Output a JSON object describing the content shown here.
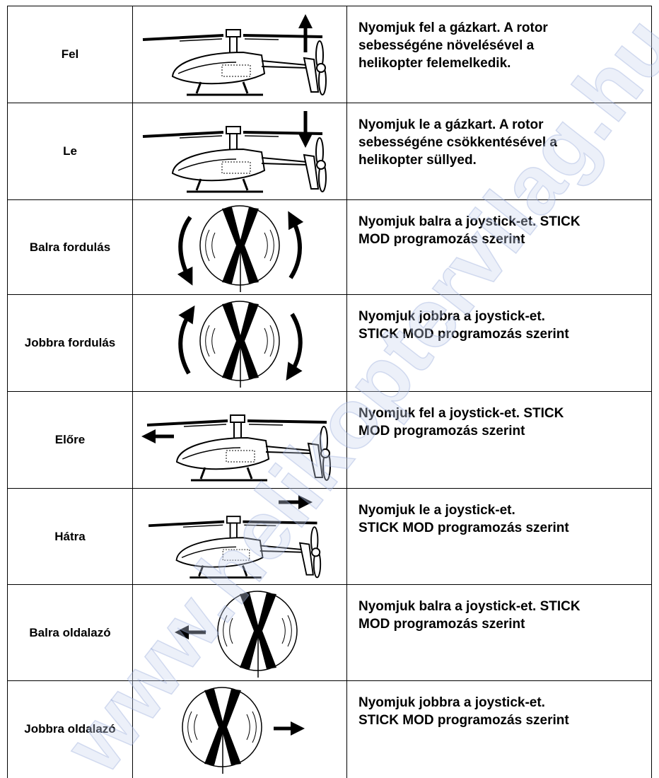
{
  "table": {
    "rows": [
      {
        "label": "Fel",
        "text": [
          "Nyomjuk fel a gázkart. A rotor",
          "sebességéne növelésével a",
          "helikopter felemelkedik."
        ]
      },
      {
        "label": "Le",
        "text": [
          "Nyomjuk le a gázkart. A rotor",
          "sebességéne csökkentésével a",
          "helikopter süllyed."
        ]
      },
      {
        "label": "Balra fordulás",
        "text": [
          "Nyomjuk balra a joystick-et. STICK",
          "MOD programozás szerint"
        ]
      },
      {
        "label": "Jobbra fordulás",
        "text": [
          "Nyomjuk jobbra a joystick-et.",
          "STICK MOD programozás szerint"
        ]
      },
      {
        "label": "Előre",
        "text": [
          "Nyomjuk fel a joystick-et. STICK",
          "MOD programozás szerint"
        ]
      },
      {
        "label": "Hátra",
        "text": [
          "Nyomjuk le a joystick-et.",
          "STICK MOD programozás szerint"
        ]
      },
      {
        "label": "Balra oldalazó",
        "text": [
          "Nyomjuk balra a joystick-et. STICK",
          "MOD programozás szerint"
        ]
      },
      {
        "label": "Jobbra oldalazó",
        "text": [
          "Nyomjuk jobbra a joystick-et.",
          "STICK MOD programozás szerint"
        ]
      }
    ]
  },
  "watermark": "www.helikoptervilag.hu"
}
